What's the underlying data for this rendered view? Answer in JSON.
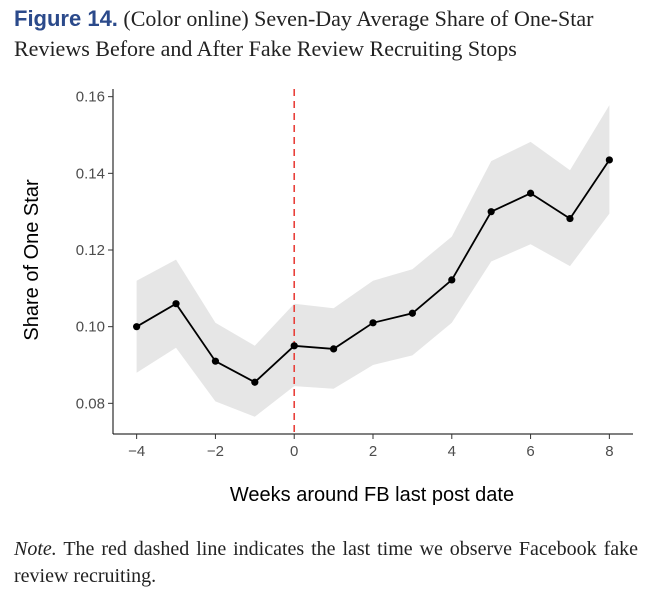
{
  "caption": {
    "label": "Figure 14.",
    "text": "(Color online) Seven-Day Average Share of One-Star Reviews Before and After Fake Review Recruiting Stops"
  },
  "note": {
    "lead": "Note.",
    "text": "The red dashed line indicates the last time we observe Facebook fake review recruiting."
  },
  "chart_data": {
    "type": "line",
    "title": "",
    "xlabel": "Weeks around FB last post date",
    "ylabel": "Share of One Star",
    "xlim": [
      -4.6,
      8.6
    ],
    "ylim": [
      0.072,
      0.162
    ],
    "xticks": [
      -4,
      -2,
      0,
      2,
      4,
      6,
      8
    ],
    "yticks": [
      0.08,
      0.1,
      0.12,
      0.14,
      0.16
    ],
    "ytick_labels": [
      "0.08",
      "0.10",
      "0.12",
      "0.14",
      "0.16"
    ],
    "xtick_labels": [
      "−4",
      "−2",
      "0",
      "2",
      "4",
      "6",
      "8"
    ],
    "grid": false,
    "x": [
      -4,
      -3,
      -2,
      -1,
      0,
      1,
      2,
      3,
      4,
      5,
      6,
      7,
      8
    ],
    "y": [
      0.1,
      0.106,
      0.091,
      0.0855,
      0.095,
      0.0942,
      0.101,
      0.1035,
      0.1122,
      0.13,
      0.1348,
      0.1282,
      0.1435
    ],
    "ci_lower": [
      0.088,
      0.0945,
      0.0805,
      0.0765,
      0.0845,
      0.0838,
      0.09,
      0.0925,
      0.101,
      0.117,
      0.1215,
      0.1158,
      0.1295
    ],
    "ci_upper": [
      0.112,
      0.1175,
      0.101,
      0.095,
      0.106,
      0.1048,
      0.112,
      0.115,
      0.1235,
      0.1432,
      0.1482,
      0.1408,
      0.1578
    ],
    "vline": {
      "x": 0,
      "color": "#e8403a",
      "style": "dashed"
    },
    "line_color": "#000000",
    "band_color": "#e6e6e6"
  }
}
